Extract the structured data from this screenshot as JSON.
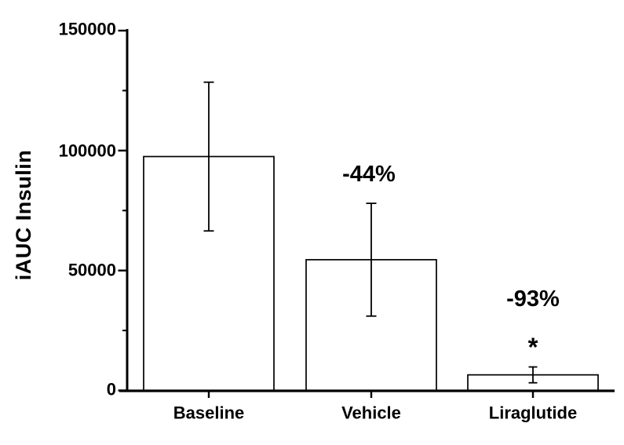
{
  "chart_data": {
    "type": "bar",
    "title": "",
    "ylabel": "iAUC Insulin",
    "xlabel": "",
    "categories": [
      "Baseline",
      "Vehicle",
      "Liraglutide"
    ],
    "values": [
      97500,
      54500,
      6500
    ],
    "errors": [
      31000,
      23500,
      3300
    ],
    "error_bar_style": "both-directions-with-caps",
    "ylim": [
      0,
      150000
    ],
    "ytick_major_values": [
      0,
      50000,
      100000,
      150000
    ],
    "ytick_labels": [
      "0",
      "50000",
      "100000",
      "150000"
    ],
    "ytick_minor_values": [
      25000,
      75000,
      125000
    ],
    "annotations": [
      {
        "category": "Vehicle",
        "label": "-44%"
      },
      {
        "category": "Liraglutide",
        "label": "-93%",
        "significance_marker": "*"
      }
    ],
    "grid": false,
    "legend": false,
    "bar_fill": "#ffffff",
    "bar_stroke": "#000000",
    "axis_color": "#000000",
    "background_color": "#ffffff"
  }
}
